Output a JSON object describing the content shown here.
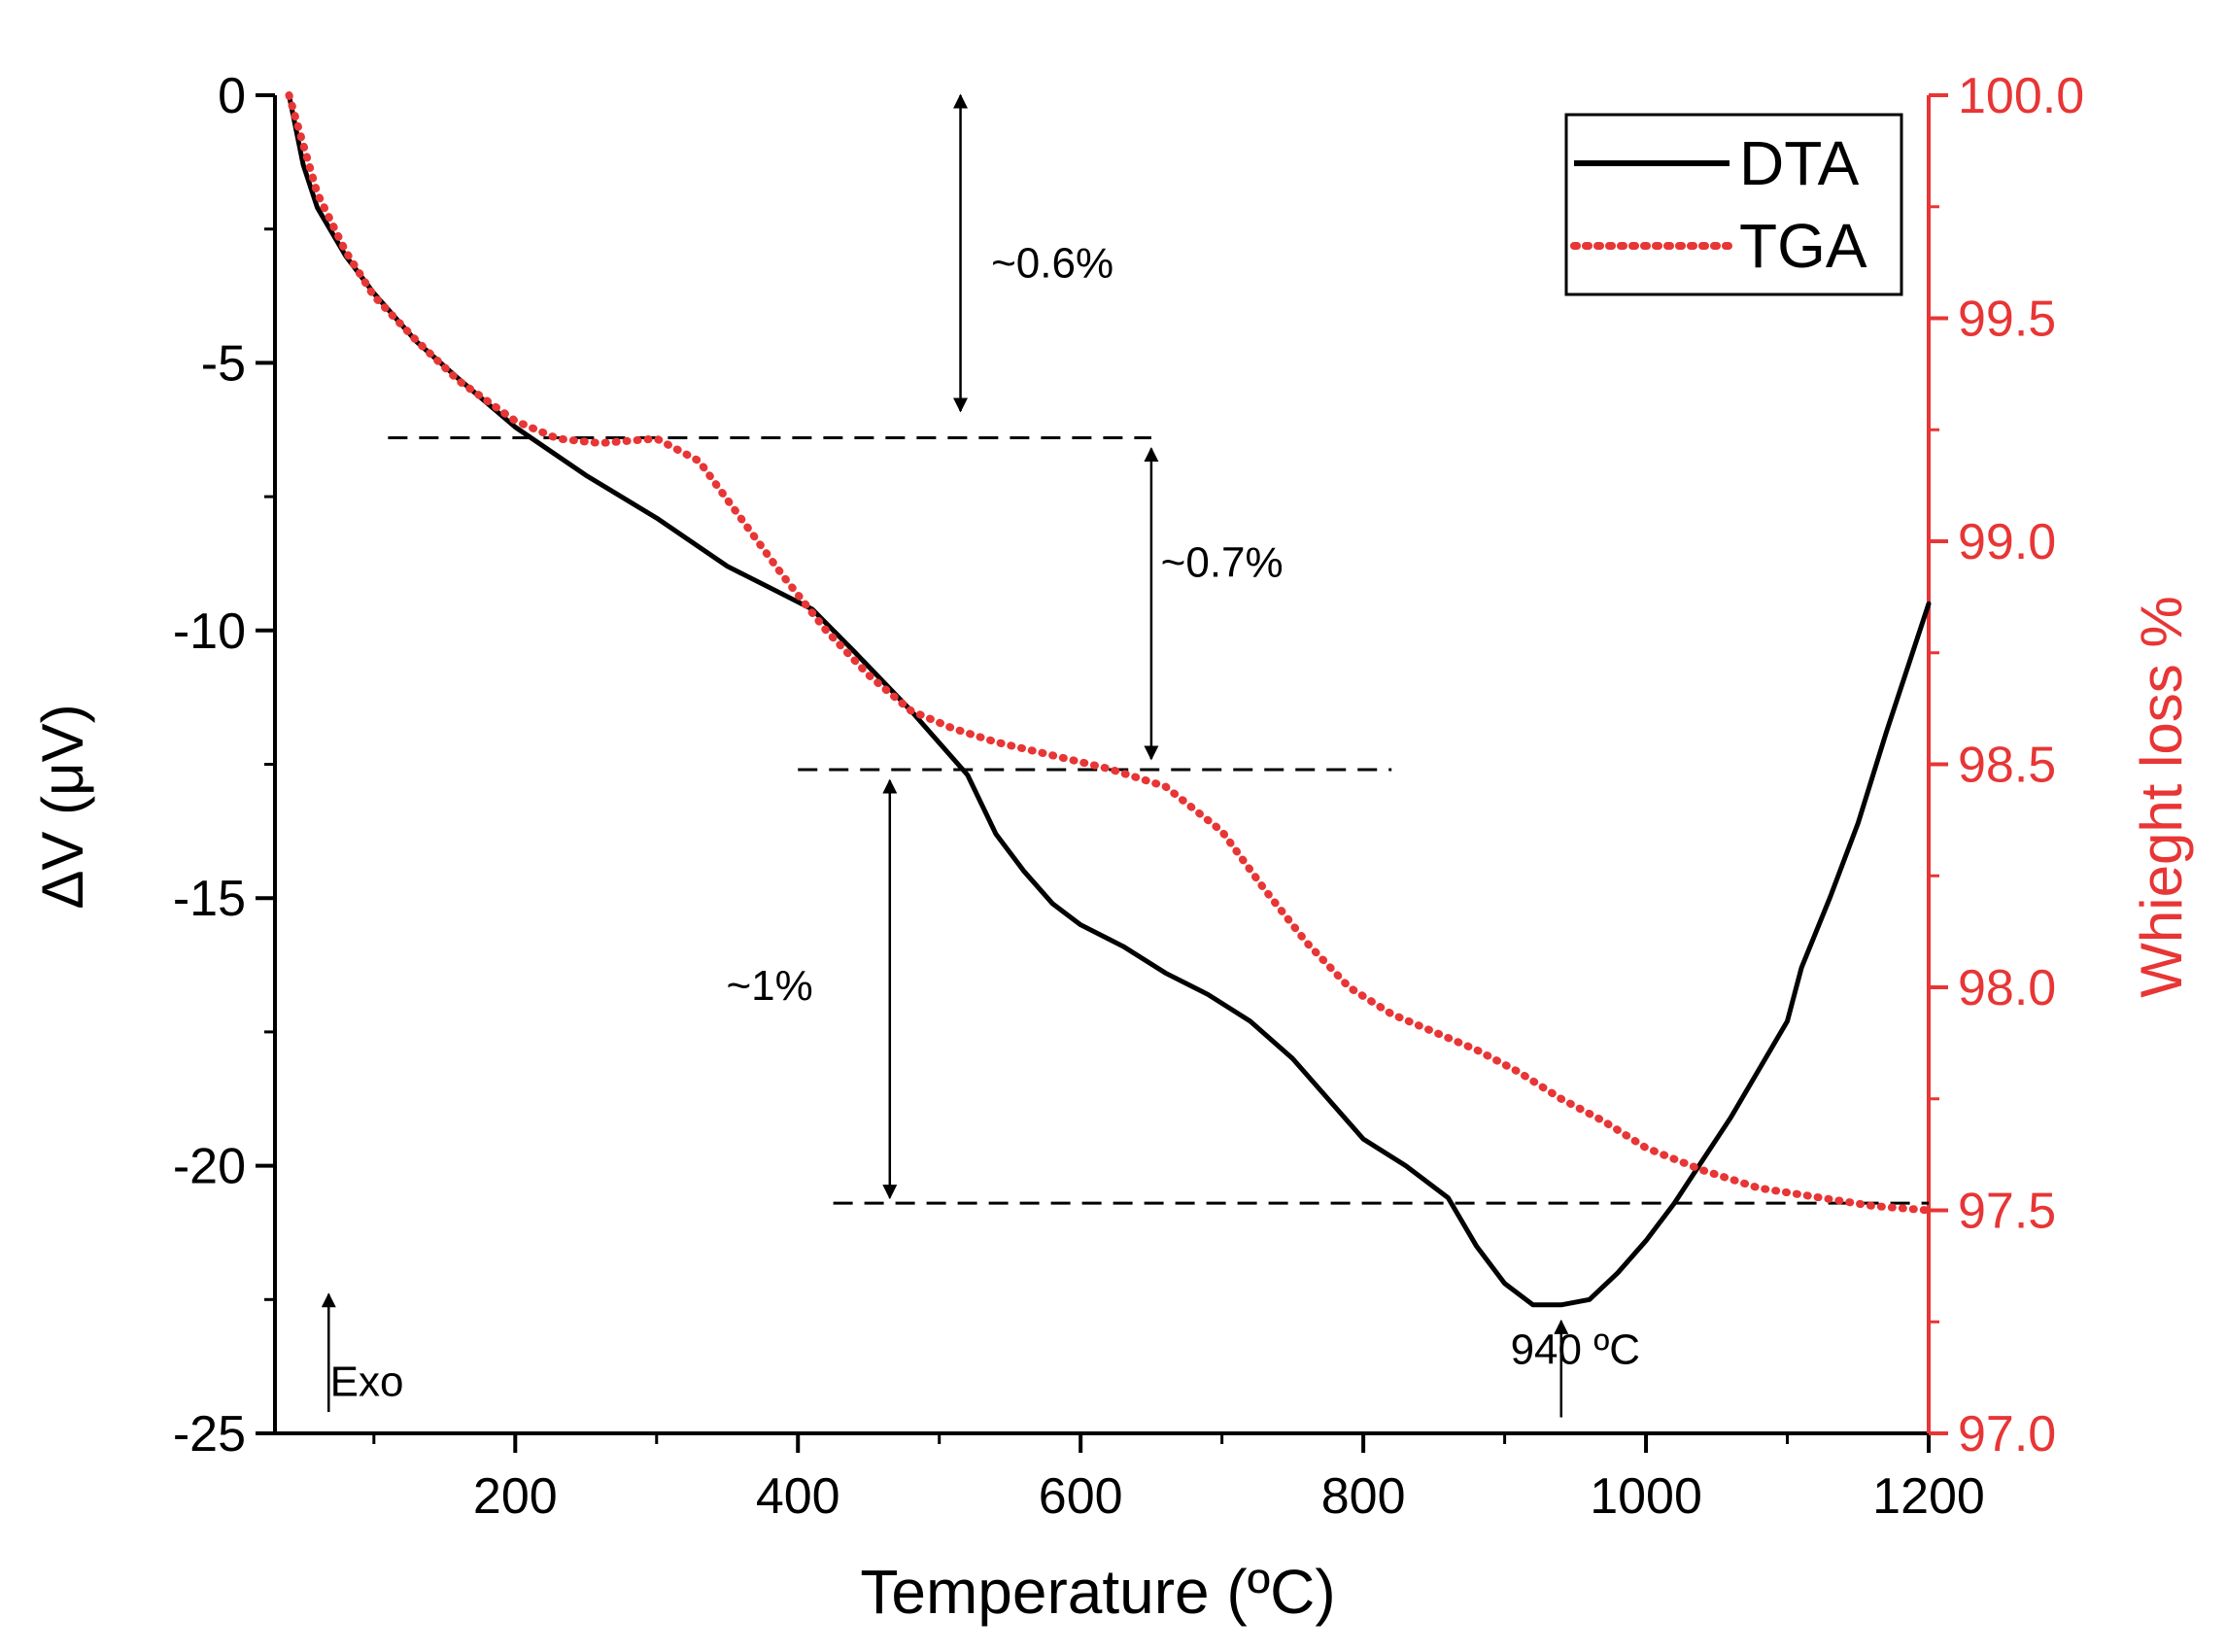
{
  "chart_data": {
    "type": "line",
    "xlabel": "Temperature (ºC)",
    "xlim": [
      30,
      1200
    ],
    "x_ticks": [
      200,
      400,
      600,
      800,
      1000,
      1200
    ],
    "x_tick_labels": [
      "200",
      "400",
      "600",
      "800",
      "1000",
      "1200"
    ],
    "y_left": {
      "label": "ΔV (μV)",
      "lim": [
        -25,
        0
      ],
      "ticks": [
        0,
        -5,
        -10,
        -15,
        -20,
        -25
      ],
      "tick_labels": [
        "0",
        "-5",
        "-10",
        "-15",
        "-20",
        "-25"
      ]
    },
    "y_right": {
      "label": "Whieght loss %",
      "lim": [
        97.0,
        100.0
      ],
      "ticks": [
        100.0,
        99.5,
        99.0,
        98.5,
        98.0,
        97.5,
        97.0
      ],
      "tick_labels": [
        "100.0",
        "99.5",
        "99.0",
        "98.5",
        "98.0",
        "97.5",
        "97.0"
      ]
    },
    "legend_position": "top-right",
    "series": [
      {
        "name": "DTA",
        "axis": "left",
        "style": "solid",
        "color": "#000000",
        "x": [
          40,
          50,
          60,
          80,
          100,
          130,
          160,
          200,
          250,
          300,
          350,
          380,
          410,
          440,
          480,
          520,
          540,
          560,
          580,
          600,
          630,
          660,
          690,
          720,
          750,
          780,
          800,
          830,
          860,
          880,
          900,
          920,
          940,
          960,
          980,
          1000,
          1020,
          1040,
          1060,
          1080,
          1100,
          1110,
          1130,
          1150,
          1170,
          1200
        ],
        "y": [
          0,
          -1.3,
          -2.1,
          -3.0,
          -3.7,
          -4.6,
          -5.3,
          -6.2,
          -7.1,
          -7.9,
          -8.8,
          -9.2,
          -9.6,
          -10.4,
          -11.5,
          -12.7,
          -13.8,
          -14.5,
          -15.1,
          -15.5,
          -15.9,
          -16.4,
          -16.8,
          -17.3,
          -18.0,
          -18.9,
          -19.5,
          -20.0,
          -20.6,
          -21.5,
          -22.2,
          -22.6,
          -22.6,
          -22.5,
          -22.0,
          -21.4,
          -20.7,
          -19.9,
          -19.1,
          -18.2,
          -17.3,
          -16.3,
          -15.0,
          -13.6,
          -11.9,
          -9.5
        ]
      },
      {
        "name": "TGA",
        "axis": "right",
        "style": "dotted",
        "color": "#e83535",
        "x": [
          40,
          60,
          80,
          100,
          130,
          160,
          200,
          230,
          260,
          300,
          330,
          360,
          390,
          420,
          450,
          480,
          510,
          540,
          580,
          620,
          660,
          700,
          730,
          760,
          790,
          820,
          850,
          880,
          910,
          940,
          970,
          1000,
          1040,
          1080,
          1120,
          1160,
          1200
        ],
        "y": [
          100.0,
          99.78,
          99.65,
          99.55,
          99.45,
          99.36,
          99.27,
          99.23,
          99.22,
          99.23,
          99.18,
          99.05,
          98.92,
          98.8,
          98.7,
          98.62,
          98.58,
          98.55,
          98.52,
          98.49,
          98.45,
          98.35,
          98.22,
          98.1,
          98.0,
          97.94,
          97.9,
          97.86,
          97.81,
          97.75,
          97.7,
          97.64,
          97.59,
          97.55,
          97.53,
          97.51,
          97.5
        ]
      }
    ],
    "annotations": [
      {
        "text": "~0.6%",
        "x": 580,
        "y": -3.4,
        "arrow_x": 515,
        "arrow_y": [
          0,
          -5.9
        ]
      },
      {
        "text": "~0.7%",
        "x": 700,
        "y": -9.0,
        "arrow_x": 650,
        "arrow_y": [
          -6.6,
          -12.4
        ]
      },
      {
        "text": "~1%",
        "x": 380,
        "y": -16.9,
        "arrow_x": 465,
        "arrow_y": [
          -12.8,
          -20.6
        ]
      },
      {
        "text": "940 ºC",
        "x": 950,
        "y": -23.7,
        "arrow_x": 940,
        "arrow_y": [
          -24.7,
          -22.9
        ]
      },
      {
        "text": "Exo",
        "x": 95,
        "y": -24.3,
        "arrow_x": 68,
        "arrow_y": [
          -24.6,
          -22.4
        ]
      }
    ],
    "reference_lines": [
      {
        "y": -6.4,
        "x": [
          110,
          650
        ]
      },
      {
        "y": -12.6,
        "x": [
          400,
          820
        ]
      },
      {
        "y": -20.7,
        "x": [
          425,
          1200
        ]
      }
    ]
  }
}
